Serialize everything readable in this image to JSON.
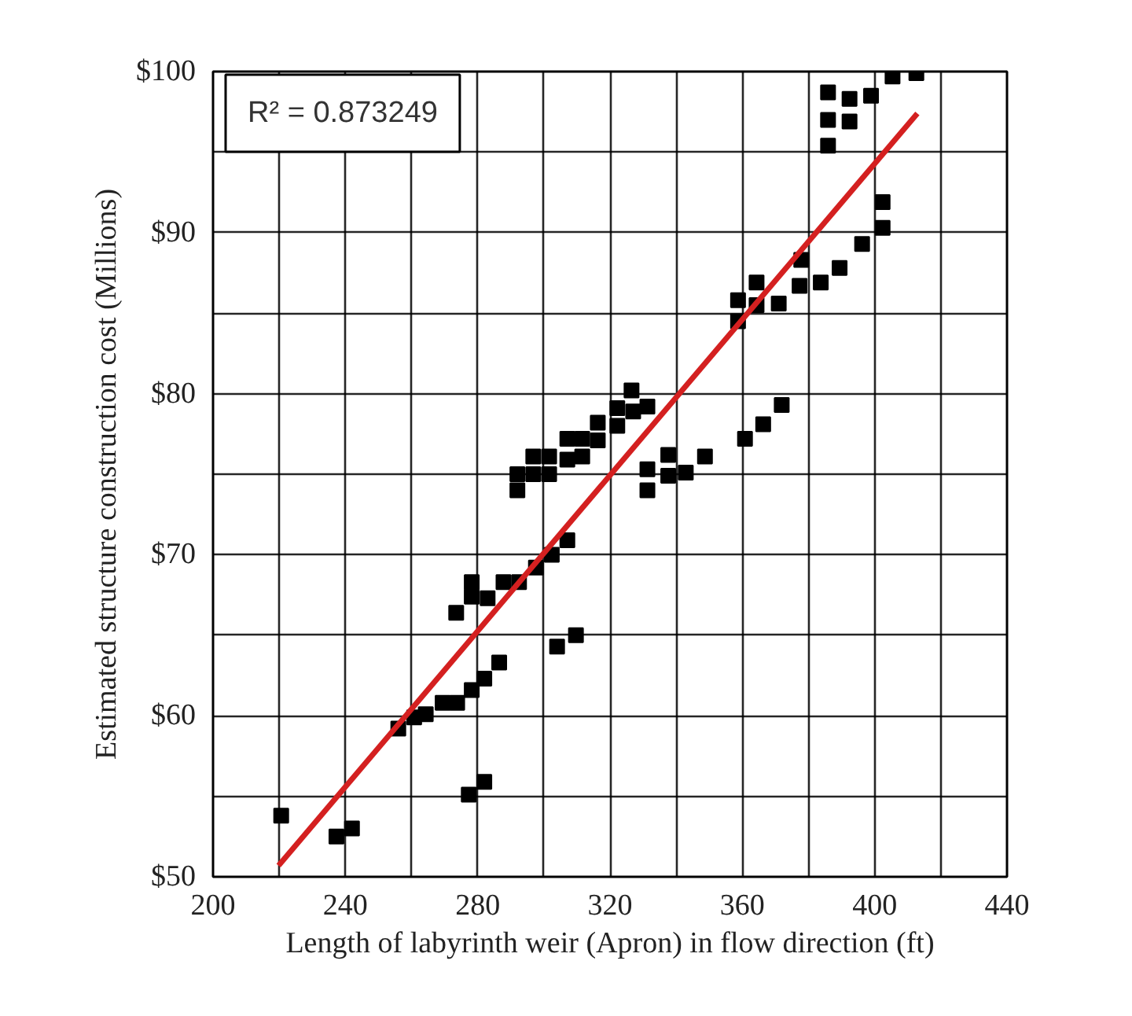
{
  "chart_data": {
    "type": "scatter",
    "xlabel": "Length of labyrinth weir (Apron) in flow direction (ft)",
    "ylabel": "Estimated structure construction cost (Millions)",
    "annotations": [
      "R² = 0.873249"
    ],
    "xlim": [
      200,
      440
    ],
    "xticks": [
      200,
      {
        "value": 220,
        "label": null
      },
      240,
      {
        "value": 260,
        "label": null
      },
      280,
      {
        "value": 300,
        "label": null
      },
      320,
      {
        "value": 340,
        "label": null
      },
      360,
      {
        "value": 380,
        "label": null
      },
      400,
      {
        "value": 420,
        "label": null
      },
      440
    ],
    "ylim": [
      50,
      100
    ],
    "yticks": [
      {
        "value": 50,
        "label": "$50"
      },
      {
        "value": 55,
        "label": null
      },
      {
        "value": 60,
        "label": "$60"
      },
      {
        "value": 65,
        "label": null
      },
      {
        "value": 70,
        "label": "$70"
      },
      {
        "value": 75,
        "label": null
      },
      {
        "value": 80,
        "label": "$80"
      },
      {
        "value": 85,
        "label": null
      },
      {
        "value": 90,
        "label": "$90"
      },
      {
        "value": 95,
        "label": null
      },
      {
        "value": 100,
        "label": "$100"
      }
    ],
    "grid": true,
    "marker": "square",
    "series": [
      {
        "type": "scatter",
        "color": "#000000",
        "x": [
          220.6,
          237.3,
          242,
          277.3,
          282,
          256,
          260.8,
          264.3,
          269.4,
          273.8,
          278.2,
          282,
          286.5,
          304,
          309.7,
          273.5,
          278.2,
          278.2,
          283,
          287.8,
          292.5,
          297.6,
          302.4,
          307.1,
          292,
          292,
          296.8,
          301.6,
          296.8,
          301.6,
          307.1,
          307.1,
          311.6,
          311.6,
          316.3,
          316.3,
          322.2,
          322.2,
          326.5,
          327,
          331.3,
          331.3,
          331.3,
          337.6,
          337.6,
          342.9,
          348.7,
          360.8,
          366.3,
          371.9,
          358.7,
          358.7,
          364.3,
          364.3,
          371,
          377.3,
          383.7,
          389.4,
          377.8,
          385.9,
          385.9,
          385.9,
          392.4,
          392.4,
          398.9,
          405.4,
          412.6,
          402.4,
          402.4,
          396.2
        ],
        "values": [
          53.8,
          52.5,
          53.0,
          55.1,
          55.9,
          59.2,
          59.9,
          60.1,
          60.8,
          60.8,
          61.6,
          62.3,
          63.3,
          64.3,
          65.0,
          66.4,
          68.3,
          67.4,
          67.3,
          68.3,
          68.3,
          69.2,
          70.0,
          70.9,
          74.0,
          75.0,
          75.0,
          75.0,
          76.1,
          76.1,
          75.9,
          77.2,
          77.2,
          76.1,
          77.1,
          78.2,
          78.0,
          79.1,
          80.2,
          78.9,
          79.2,
          75.3,
          74.0,
          76.2,
          74.9,
          75.1,
          76.1,
          77.2,
          78.1,
          79.3,
          85.8,
          84.5,
          86.9,
          85.5,
          85.6,
          86.7,
          86.9,
          87.8,
          88.3,
          98.7,
          97.0,
          95.4,
          98.3,
          96.9,
          98.5,
          99.7,
          99.9,
          91.9,
          90.3,
          89.3
        ]
      },
      {
        "type": "line",
        "color": "#d42020",
        "marker": "none",
        "x": [
          219.8,
          412.9
        ],
        "values": [
          50.7,
          97.4
        ]
      }
    ]
  }
}
